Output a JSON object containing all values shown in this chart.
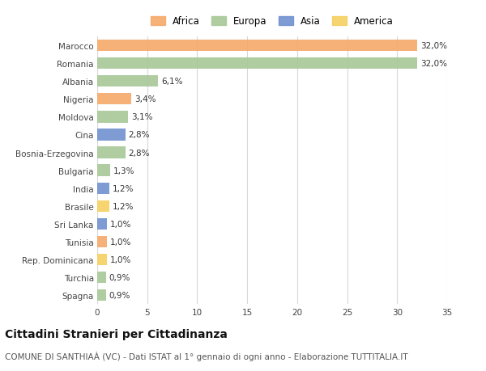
{
  "countries": [
    "Marocco",
    "Romania",
    "Albania",
    "Nigeria",
    "Moldova",
    "Cina",
    "Bosnia-Erzegovina",
    "Bulgaria",
    "India",
    "Brasile",
    "Sri Lanka",
    "Tunisia",
    "Rep. Dominicana",
    "Turchia",
    "Spagna"
  ],
  "values": [
    32.0,
    32.0,
    6.1,
    3.4,
    3.1,
    2.8,
    2.8,
    1.3,
    1.2,
    1.2,
    1.0,
    1.0,
    1.0,
    0.9,
    0.9
  ],
  "labels": [
    "32,0%",
    "32,0%",
    "6,1%",
    "3,4%",
    "3,1%",
    "2,8%",
    "2,8%",
    "1,3%",
    "1,2%",
    "1,2%",
    "1,0%",
    "1,0%",
    "1,0%",
    "0,9%",
    "0,9%"
  ],
  "continents": [
    "Africa",
    "Europa",
    "Europa",
    "Africa",
    "Europa",
    "Asia",
    "Europa",
    "Europa",
    "Asia",
    "America",
    "Asia",
    "Africa",
    "America",
    "Europa",
    "Europa"
  ],
  "continent_colors": {
    "Africa": "#F5A96A",
    "Europa": "#A8C897",
    "Asia": "#7090D0",
    "America": "#F5D060"
  },
  "legend_order": [
    "Africa",
    "Europa",
    "Asia",
    "America"
  ],
  "title": "Cittadini Stranieri per Cittadinanza",
  "subtitle": "COMUNE DI SANTHIAÀ (VC) - Dati ISTAT al 1° gennaio di ogni anno - Elaborazione TUTTITALIA.IT",
  "xlim": [
    0,
    35
  ],
  "xticks": [
    0,
    5,
    10,
    15,
    20,
    25,
    30,
    35
  ],
  "bg_color": "#ffffff",
  "plot_bg_color": "#ffffff",
  "grid_color": "#d8d8d8",
  "bar_alpha": 0.9,
  "label_fontsize": 7.5,
  "tick_fontsize": 7.5,
  "title_fontsize": 10,
  "subtitle_fontsize": 7.5
}
